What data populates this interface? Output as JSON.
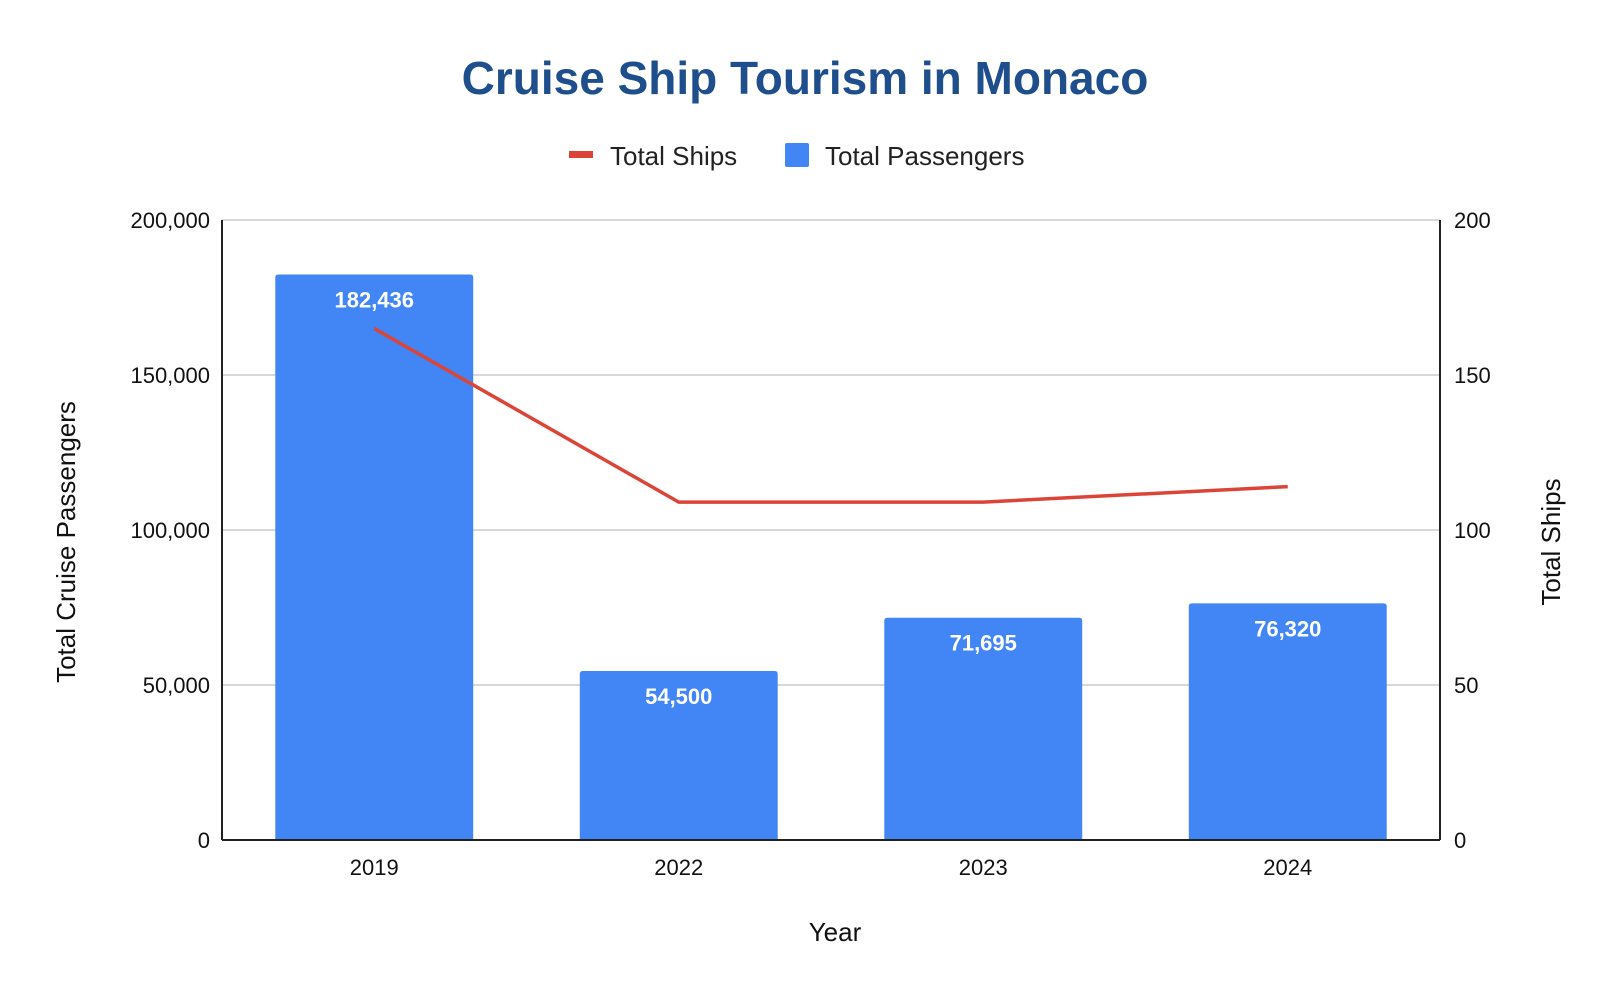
{
  "chart_data": {
    "type": "bar",
    "title": "Cruise Ship Tourism in Monaco",
    "xlabel": "Year",
    "ylabel": "Total Cruise Passengers",
    "y2label": "Total Ships",
    "categories": [
      "2019",
      "2022",
      "2023",
      "2024"
    ],
    "series": [
      {
        "name": "Total Passengers",
        "type": "bar",
        "axis": "left",
        "color": "#4285f4",
        "values": [
          182436,
          54500,
          71695,
          76320
        ],
        "labels": [
          "182,436",
          "54,500",
          "71,695",
          "76,320"
        ]
      },
      {
        "name": "Total Ships",
        "type": "line",
        "axis": "right",
        "color": "#db4437",
        "values": [
          165,
          109,
          109,
          114
        ]
      }
    ],
    "ylim": [
      0,
      200000
    ],
    "y2lim": [
      0,
      200
    ],
    "yticks": [
      "0",
      "50,000",
      "100,000",
      "150,000",
      "200,000"
    ],
    "y2ticks": [
      "0",
      "50",
      "100",
      "150",
      "200"
    ],
    "legend": {
      "position": "top",
      "items": [
        {
          "label": "Total Ships",
          "color": "#db4437",
          "kind": "line"
        },
        {
          "label": "Total Passengers",
          "color": "#4285f4",
          "kind": "box"
        }
      ]
    },
    "grid": true
  }
}
